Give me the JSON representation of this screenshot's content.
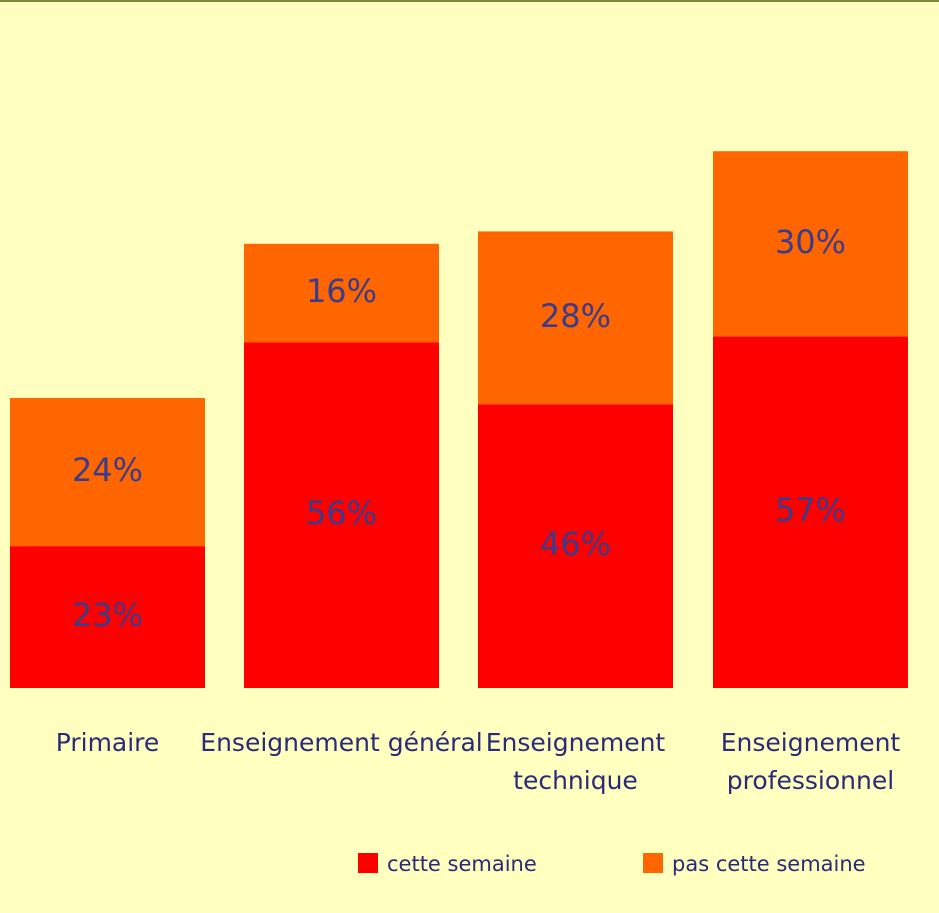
{
  "chart_data": {
    "type": "bar",
    "stacked": true,
    "categories": [
      "Primaire",
      "Enseignement général",
      "Enseignement technique",
      "Enseignement professionnel"
    ],
    "category_lines": [
      [
        "Primaire"
      ],
      [
        "Enseignement général"
      ],
      [
        "Enseignement",
        "technique"
      ],
      [
        "Enseignement",
        "professionnel"
      ]
    ],
    "series": [
      {
        "name": "cette semaine",
        "color": "#ff0000",
        "values": [
          23,
          56,
          46,
          57
        ],
        "labels": [
          "23%",
          "56%",
          "46%",
          "57%"
        ]
      },
      {
        "name": "pas cette semaine",
        "color": "#ff6600",
        "values": [
          24,
          16,
          28,
          30
        ],
        "labels": [
          "24%",
          "16%",
          "28%",
          "30%"
        ]
      }
    ],
    "legend_position": "bottom-right",
    "grid": false,
    "ylim": [
      0,
      100
    ]
  },
  "colors": {
    "background": "#ffffc0",
    "label_text": "#3b3b8c",
    "category_text": "#2a2a7a"
  }
}
